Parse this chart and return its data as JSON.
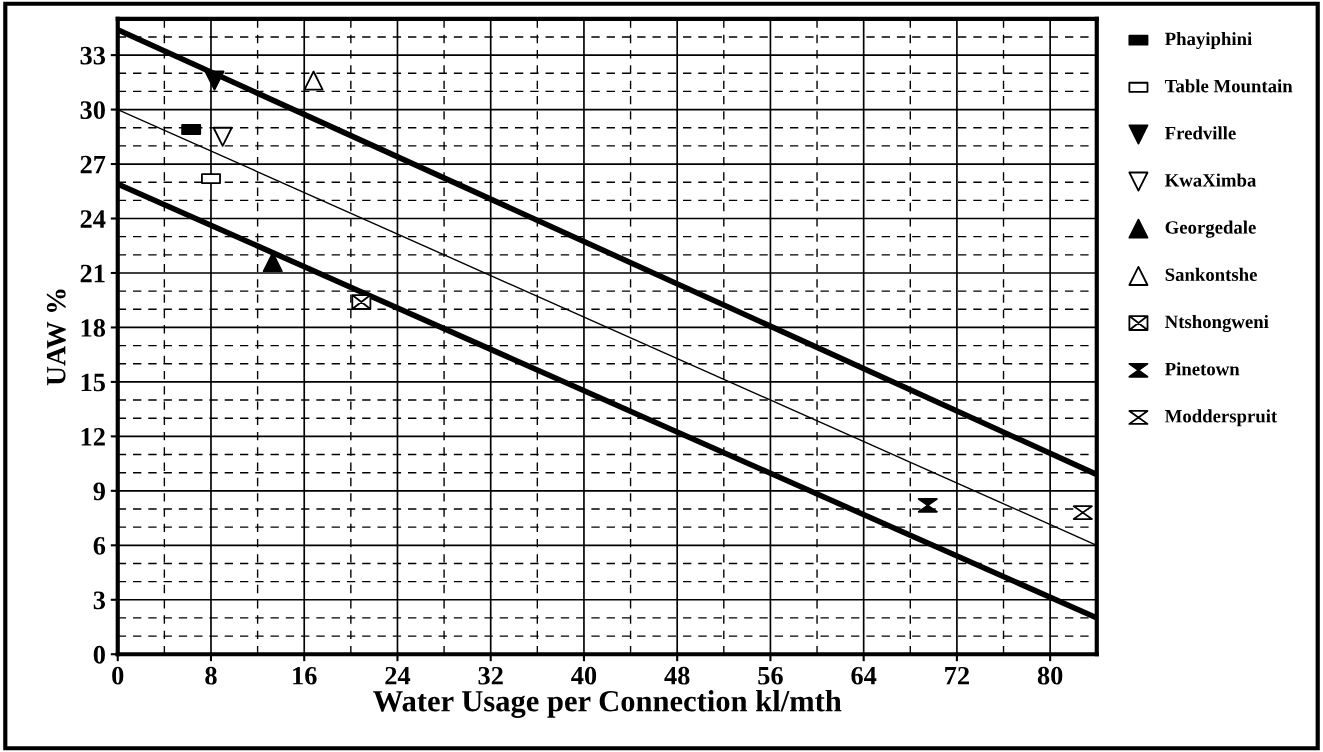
{
  "chart_data": {
    "type": "scatter",
    "xlabel": "Water Usage per Connection kl/mth",
    "ylabel": "UAW %",
    "xlim": [
      0,
      84
    ],
    "xticks": [
      0,
      8,
      16,
      24,
      32,
      40,
      48,
      56,
      64,
      72,
      80
    ],
    "ylim": [
      0,
      35
    ],
    "yticks": [
      0,
      3,
      6,
      9,
      12,
      15,
      18,
      21,
      24,
      27,
      30,
      33
    ],
    "grid": true,
    "legend": "right",
    "series": [
      {
        "name": "Phayiphini",
        "color": "#000000",
        "x": [
          6.3
        ],
        "values": [
          28.9
        ]
      },
      {
        "name": "Table Mountain",
        "color": "#000000",
        "x": [
          8.0
        ],
        "values": [
          26.2
        ]
      },
      {
        "name": "Fredville",
        "color": "#000000",
        "x": [
          8.3
        ],
        "values": [
          31.6
        ]
      },
      {
        "name": "KwaXimba",
        "color": "#000000",
        "x": [
          9.0
        ],
        "values": [
          28.5
        ]
      },
      {
        "name": "Georgedale",
        "color": "#000000",
        "x": [
          13.3
        ],
        "values": [
          21.6
        ]
      },
      {
        "name": "Sankontshe",
        "color": "#000000",
        "x": [
          16.8
        ],
        "values": [
          31.6
        ]
      },
      {
        "name": "Ntshongweni",
        "color": "#000000",
        "x": [
          20.9
        ],
        "values": [
          19.4
        ]
      },
      {
        "name": "Pinetown",
        "color": "#000000",
        "x": [
          69.5
        ],
        "values": [
          8.2
        ]
      },
      {
        "name": "Modderspruit",
        "color": "#000000",
        "x": [
          82.8
        ],
        "values": [
          7.8
        ]
      },
      {
        "type": "line",
        "color": "#000000",
        "x": [
          0,
          84
        ],
        "values": [
          34.4,
          9.9
        ]
      },
      {
        "type": "line",
        "color": "#000000",
        "x": [
          0,
          84
        ],
        "values": [
          30.0,
          6.0
        ]
      },
      {
        "type": "line",
        "color": "#000000",
        "x": [
          0,
          84
        ],
        "values": [
          25.9,
          2.0
        ]
      }
    ]
  }
}
